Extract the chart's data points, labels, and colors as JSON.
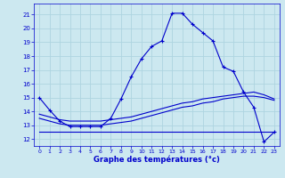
{
  "xlabel": "Graphe des températures (°c)",
  "bg_color": "#cce8f0",
  "grid_color": "#aed4e0",
  "line_color": "#0000cc",
  "x_ticks": [
    0,
    1,
    2,
    3,
    4,
    5,
    6,
    7,
    8,
    9,
    10,
    11,
    12,
    13,
    14,
    15,
    16,
    17,
    18,
    19,
    20,
    21,
    22,
    23
  ],
  "y_ticks": [
    12,
    13,
    14,
    15,
    16,
    17,
    18,
    19,
    20,
    21
  ],
  "ylim": [
    11.5,
    21.8
  ],
  "xlim": [
    -0.5,
    23.5
  ],
  "line1_x": [
    0,
    1,
    2,
    3,
    4,
    5,
    6,
    7,
    8,
    9,
    10,
    11,
    12,
    13,
    14,
    15,
    16,
    17,
    18,
    19,
    20,
    21,
    22,
    23
  ],
  "line1_y": [
    15.0,
    14.1,
    13.3,
    12.9,
    12.9,
    12.9,
    12.9,
    13.5,
    14.9,
    16.5,
    17.8,
    18.7,
    19.1,
    21.1,
    21.1,
    20.3,
    19.7,
    19.1,
    17.2,
    16.9,
    15.4,
    14.3,
    11.8,
    12.5
  ],
  "line2_x": [
    0,
    1,
    2,
    3,
    4,
    5,
    6,
    7,
    8,
    9,
    10,
    11,
    12,
    13,
    14,
    15,
    16,
    17,
    18,
    19,
    20,
    21,
    22,
    23
  ],
  "line2_y": [
    13.8,
    13.6,
    13.4,
    13.3,
    13.3,
    13.3,
    13.3,
    13.4,
    13.5,
    13.6,
    13.8,
    14.0,
    14.2,
    14.4,
    14.6,
    14.7,
    14.9,
    15.0,
    15.1,
    15.2,
    15.3,
    15.4,
    15.2,
    14.9
  ],
  "line3_x": [
    0,
    1,
    2,
    3,
    4,
    5,
    6,
    7,
    8,
    9,
    10,
    11,
    12,
    13,
    14,
    15,
    16,
    17,
    18,
    19,
    20,
    21,
    22,
    23
  ],
  "line3_y": [
    13.5,
    13.3,
    13.1,
    13.0,
    13.0,
    13.0,
    13.0,
    13.1,
    13.2,
    13.3,
    13.5,
    13.7,
    13.9,
    14.1,
    14.3,
    14.4,
    14.6,
    14.7,
    14.9,
    15.0,
    15.1,
    15.1,
    15.0,
    14.8
  ],
  "line4_x": [
    0,
    1,
    2,
    3,
    4,
    5,
    6,
    7,
    8,
    9,
    10,
    11,
    12,
    13,
    14,
    15,
    16,
    17,
    18,
    19,
    20,
    21,
    22,
    23
  ],
  "line4_y": [
    12.5,
    12.5,
    12.5,
    12.5,
    12.5,
    12.5,
    12.5,
    12.5,
    12.5,
    12.5,
    12.5,
    12.5,
    12.5,
    12.5,
    12.5,
    12.5,
    12.5,
    12.5,
    12.5,
    12.5,
    12.5,
    12.5,
    12.5,
    12.5
  ]
}
